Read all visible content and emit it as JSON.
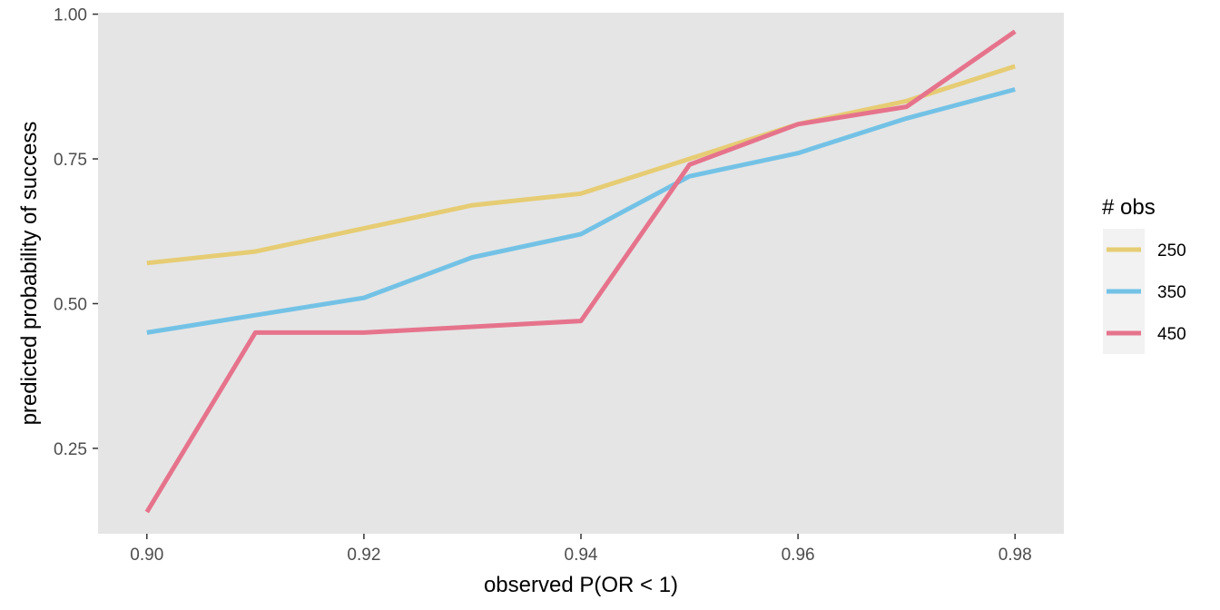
{
  "chart_data": {
    "type": "line",
    "title": "",
    "xlabel": "observed P(OR < 1)",
    "ylabel": "predicted probability of success",
    "xlim": [
      0.8955,
      0.9845
    ],
    "ylim": [
      0.1025,
      1.0025
    ],
    "x_ticks": [
      0.9,
      0.92,
      0.94,
      0.96,
      0.98
    ],
    "x_tick_labels": [
      "0.90",
      "0.92",
      "0.94",
      "0.96",
      "0.98"
    ],
    "y_ticks": [
      0.25,
      0.5,
      0.75,
      1.0
    ],
    "y_tick_labels": [
      "0.25",
      "0.50",
      "0.75",
      "1.00"
    ],
    "grid": false,
    "legend": {
      "title": "# obs",
      "position": "right"
    },
    "x": [
      0.9,
      0.91,
      0.92,
      0.93,
      0.94,
      0.95,
      0.96,
      0.97,
      0.98
    ],
    "series": [
      {
        "name": "250",
        "color": "#E6CC73",
        "values": [
          0.57,
          0.59,
          0.63,
          0.67,
          0.69,
          0.75,
          0.81,
          0.85,
          0.91
        ]
      },
      {
        "name": "350",
        "color": "#73C2E6",
        "values": [
          0.45,
          0.48,
          0.51,
          0.58,
          0.62,
          0.72,
          0.76,
          0.82,
          0.87
        ]
      },
      {
        "name": "450",
        "color": "#E6738C",
        "values": [
          0.14,
          0.45,
          0.45,
          0.46,
          0.47,
          0.74,
          0.81,
          0.84,
          0.97
        ]
      }
    ]
  }
}
